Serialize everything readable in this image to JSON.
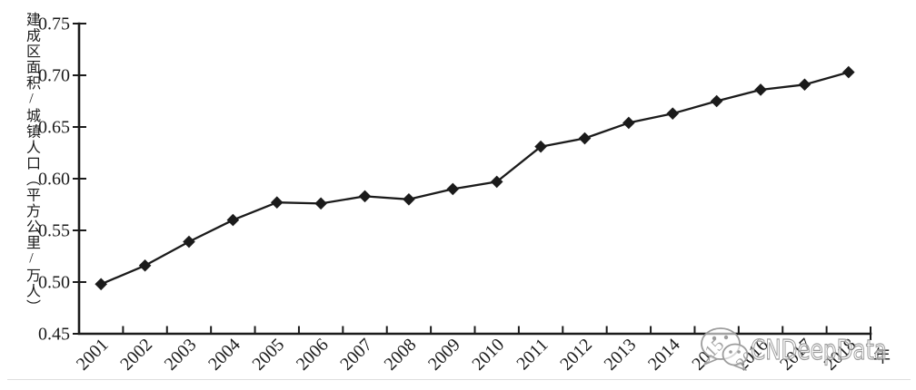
{
  "chart_data": {
    "type": "line",
    "ylabel": "建成区面积/城镇人口（平方公里/万人）",
    "xlabel": "年",
    "categories": [
      "2001",
      "2002",
      "2003",
      "2004",
      "2005",
      "2006",
      "2007",
      "2008",
      "2009",
      "2010",
      "2011",
      "2012",
      "2013",
      "2014",
      "2015",
      "2016",
      "2017",
      "2018"
    ],
    "values": [
      0.498,
      0.516,
      0.539,
      0.56,
      0.577,
      0.576,
      0.583,
      0.58,
      0.59,
      0.597,
      0.631,
      0.639,
      0.654,
      0.663,
      0.675,
      0.686,
      0.691,
      0.703
    ],
    "ylim": [
      0.45,
      0.75
    ],
    "yticks": [
      0.45,
      0.5,
      0.55,
      0.6,
      0.65,
      0.7,
      0.75
    ],
    "ytick_labels": [
      "0.45",
      "0.50",
      "0.55",
      "0.60",
      "0.65",
      "0.70",
      "0.75"
    ],
    "xtick_label_rotation": -45,
    "grid": false,
    "legend": "none",
    "marker": "diamond",
    "line_color": "#1b1b1b",
    "marker_color": "#1b1b1b",
    "axis_color": "#1b1b1b",
    "text_color": "#1b1b1b"
  },
  "watermark": {
    "text": "CNDeepData",
    "icon": "wechat-logo-icon",
    "stroke_color": "#9c9c9c",
    "fill_color": "#ffffff"
  }
}
